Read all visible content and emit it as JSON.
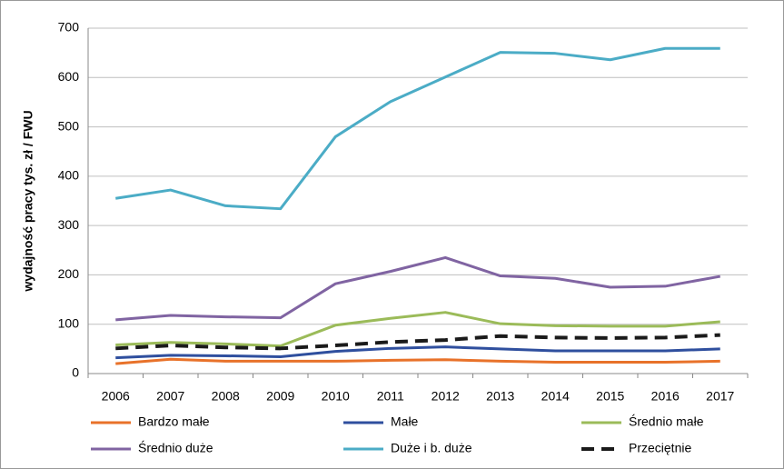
{
  "chart_data": {
    "type": "line",
    "y_label": "wydajność pracy tys. zł / FWU",
    "categories": [
      "2006",
      "2007",
      "2008",
      "2009",
      "2010",
      "2011",
      "2012",
      "2013",
      "2014",
      "2015",
      "2016",
      "2017"
    ],
    "series": [
      {
        "name": "Bardzo małe",
        "color": "#e8722a",
        "values": [
          20,
          29,
          25,
          25,
          25,
          27,
          28,
          25,
          23,
          23,
          23,
          25
        ]
      },
      {
        "name": "Małe",
        "color": "#2f4f9e",
        "values": [
          32,
          37,
          36,
          34,
          45,
          51,
          54,
          50,
          46,
          46,
          46,
          50
        ]
      },
      {
        "name": "Średnio małe",
        "color": "#9bbb59",
        "values": [
          58,
          63,
          60,
          56,
          98,
          112,
          124,
          101,
          97,
          96,
          96,
          105
        ]
      },
      {
        "name": "Średnio duże",
        "color": "#8064a2",
        "values": [
          109,
          118,
          115,
          113,
          182,
          207,
          235,
          198,
          193,
          175,
          177,
          197
        ]
      },
      {
        "name": "Duże i b. duże",
        "color": "#4bacc6",
        "values": [
          355,
          372,
          340,
          334,
          480,
          551,
          601,
          651,
          649,
          636,
          659,
          659
        ]
      },
      {
        "name": "Przeciętnie",
        "color": "#1a1a1a",
        "dashed": true,
        "values": [
          51,
          57,
          53,
          51,
          57,
          64,
          68,
          76,
          73,
          72,
          73,
          78
        ]
      }
    ],
    "ylim": [
      0,
      700
    ],
    "yticks": [
      0,
      100,
      200,
      300,
      400,
      500,
      600,
      700
    ],
    "grid": true
  }
}
